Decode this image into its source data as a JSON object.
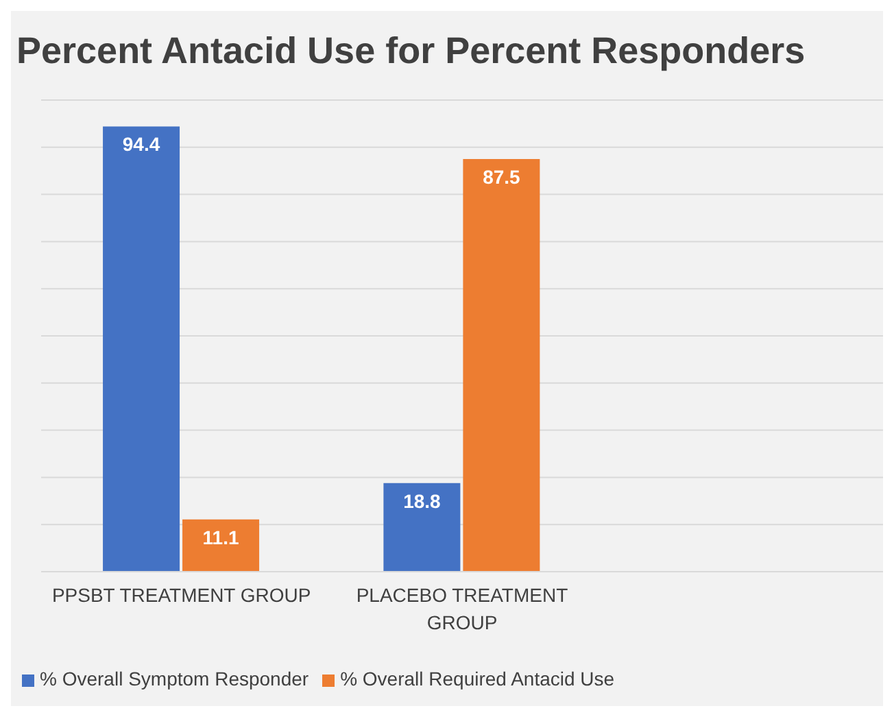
{
  "chart_data": {
    "type": "bar",
    "title": "Percent Antacid Use for Percent Responders",
    "categories": [
      "PPSBT TREATMENT GROUP",
      "PLACEBO TREATMENT GROUP",
      null
    ],
    "series": [
      {
        "name": "% Overall Symptom Responder",
        "color": "#4472c4",
        "values": [
          94.4,
          18.8,
          null
        ]
      },
      {
        "name": "% Overall Required Antacid Use",
        "color": "#ed7d31",
        "values": [
          11.1,
          87.5,
          null
        ]
      }
    ],
    "tick_labels": "x",
    "grid": "y",
    "legend": "bottom",
    "data_labels": true
  }
}
